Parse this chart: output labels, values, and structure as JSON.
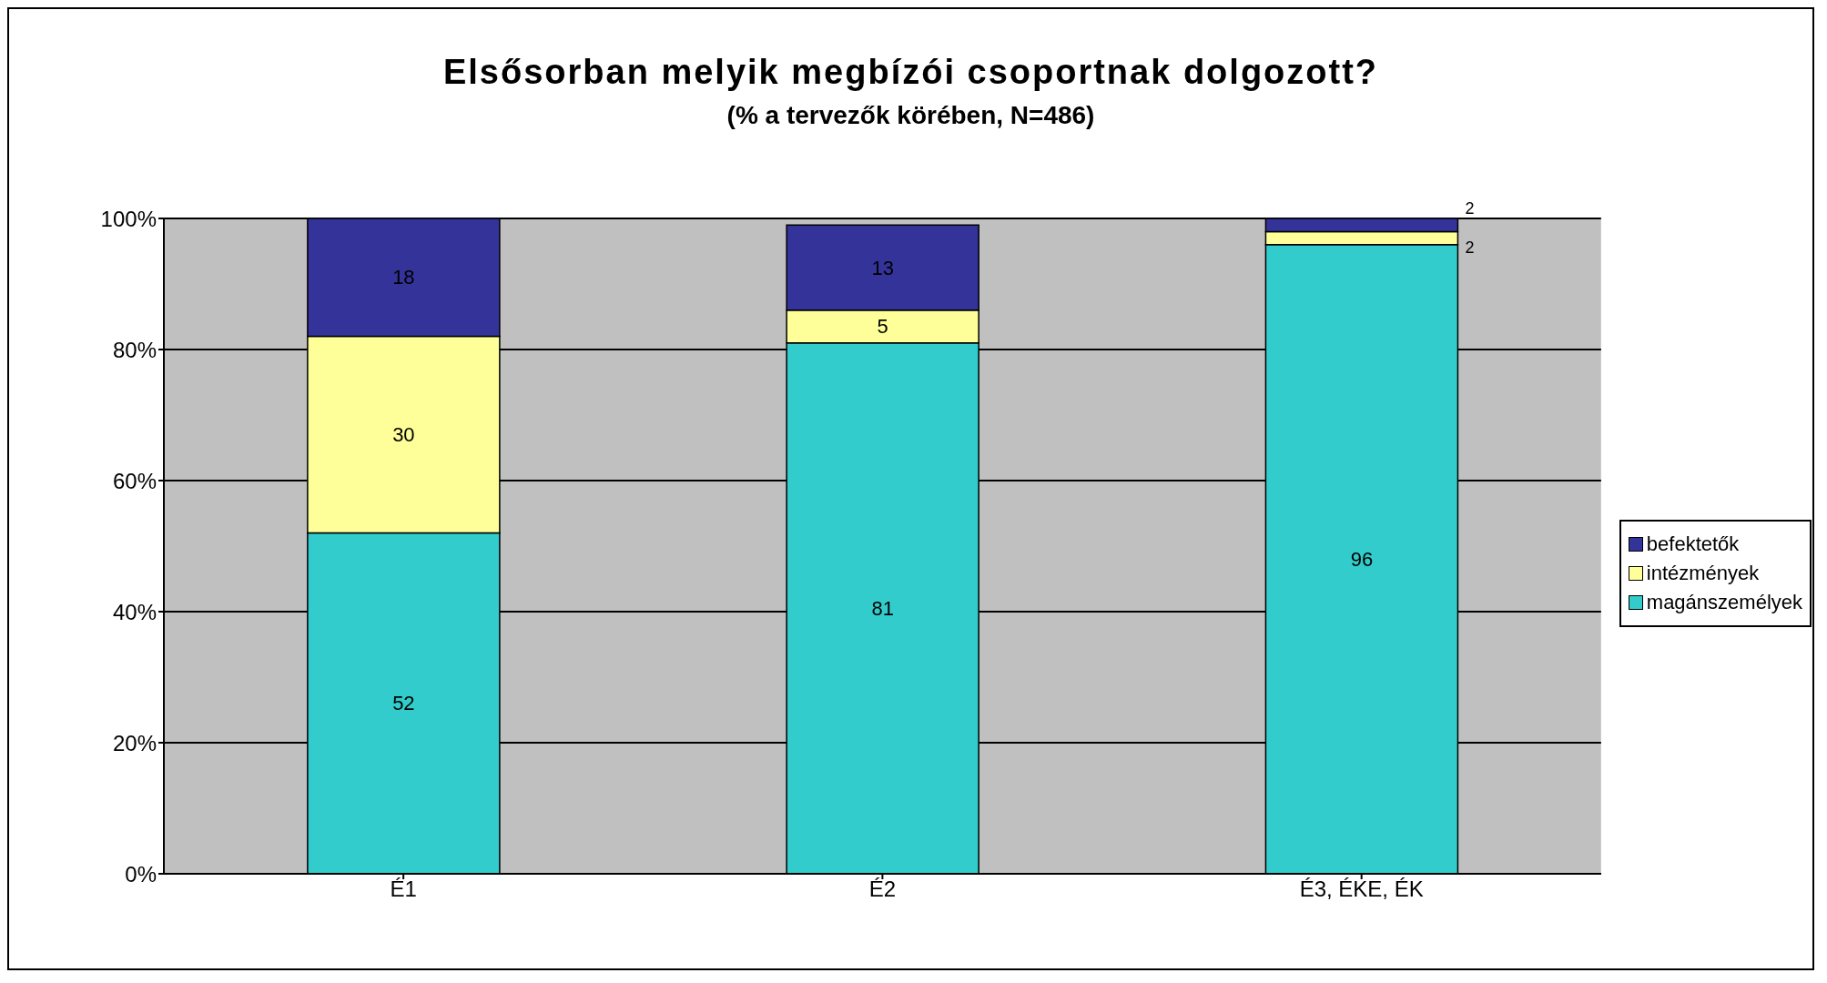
{
  "chart_data": {
    "type": "bar",
    "title": "Elsősorban melyik megbízói csoportnak dolgozott?",
    "subtitle": "(% a tervezők körében, N=486)",
    "categories": [
      "É1",
      "É2",
      "É3, ÉKE, ÉK"
    ],
    "stacked": true,
    "series": [
      {
        "name": "magánszemélyek",
        "color": "#33cccc",
        "values": [
          52,
          81,
          96
        ]
      },
      {
        "name": "intézmények",
        "color": "#ffff99",
        "values": [
          30,
          5,
          2
        ]
      },
      {
        "name": "befektetők",
        "color": "#333399",
        "values": [
          18,
          13,
          2
        ]
      }
    ],
    "ylim": [
      0,
      100
    ],
    "yticks": [
      {
        "value": 0,
        "label": "0%"
      },
      {
        "value": 20,
        "label": "20%"
      },
      {
        "value": 40,
        "label": "40%"
      },
      {
        "value": 60,
        "label": "60%"
      },
      {
        "value": 80,
        "label": "80%"
      },
      {
        "value": 100,
        "label": "100%"
      }
    ],
    "grid": "y",
    "legend": "right",
    "data_labels": true
  }
}
